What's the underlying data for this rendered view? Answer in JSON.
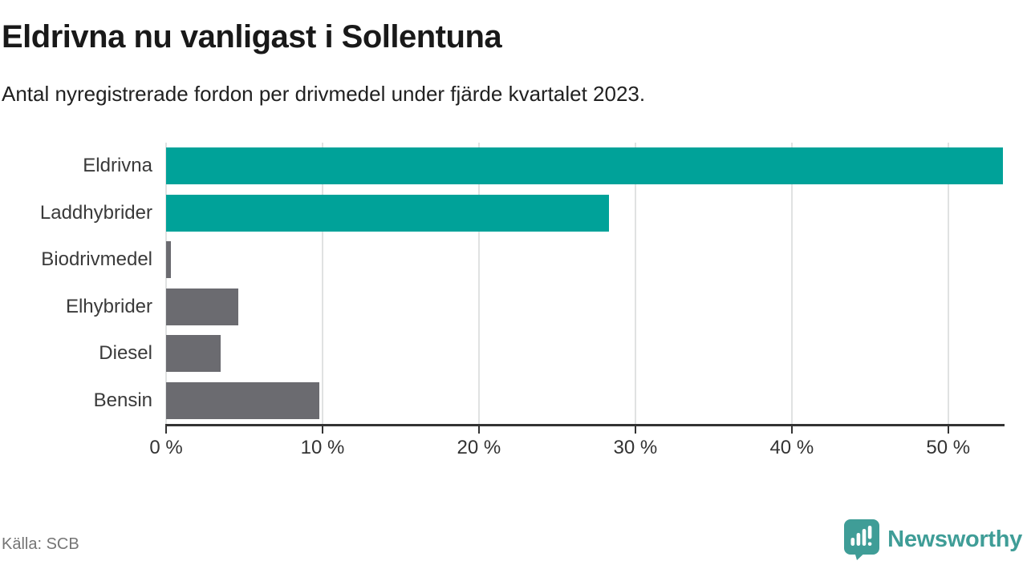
{
  "header": {
    "title": "Eldrivna nu vanligast i Sollentuna",
    "subtitle": "Antal nyregistrerade fordon per drivmedel under fjärde kvartalet 2023."
  },
  "chart_data": {
    "type": "bar",
    "orientation": "horizontal",
    "title": "Eldrivna nu vanligast i Sollentuna",
    "subtitle": "Antal nyregistrerade fordon per drivmedel under fjärde kvartalet 2023.",
    "categories": [
      "Eldrivna",
      "Laddhybrider",
      "Biodrivmedel",
      "Elhybrider",
      "Diesel",
      "Bensin"
    ],
    "values": [
      53.5,
      28.3,
      0.3,
      4.6,
      3.5,
      9.8
    ],
    "unit": "%",
    "bar_colors": [
      "#00a299",
      "#00a299",
      "#6b6b70",
      "#6b6b70",
      "#6b6b70",
      "#6b6b70"
    ],
    "highlight_color": "#00a299",
    "default_color": "#6b6b70",
    "xlabel": "",
    "ylabel": "",
    "xlim": [
      0,
      53.5
    ],
    "x_ticks": [
      0,
      10,
      20,
      30,
      40,
      50
    ],
    "x_tick_labels": [
      "0 %",
      "10 %",
      "20 %",
      "30 %",
      "40 %",
      "50 %"
    ],
    "grid": "vertical-light",
    "gridline_color": "#e0e2e2",
    "axis_color": "#333333",
    "legend": "none"
  },
  "footer": {
    "source": "Källa: SCB",
    "brand": "Newsworthy",
    "brand_color": "#3f9d97",
    "brand_icon": "speech-bubble-bar-chart-icon"
  }
}
